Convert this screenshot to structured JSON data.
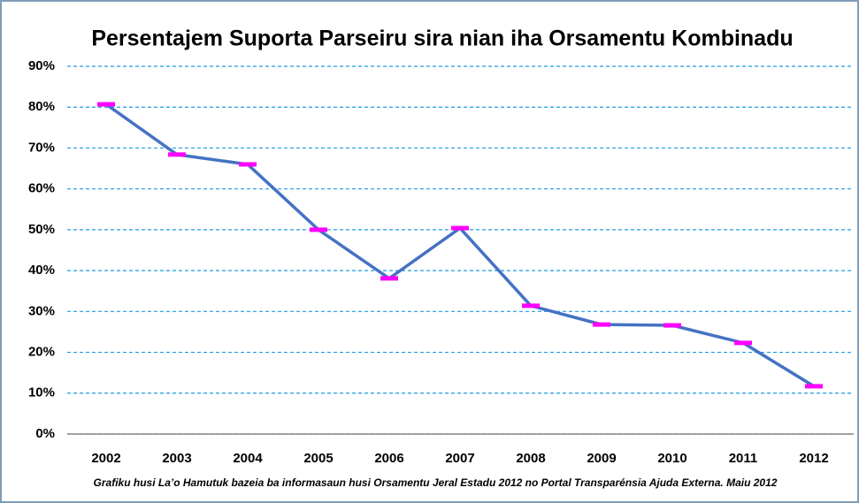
{
  "chart_data": {
    "type": "line",
    "title": "Persentajem Suporta Parseiru sira nian iha Orsamentu Kombinadu",
    "categories": [
      "2002",
      "2003",
      "2004",
      "2005",
      "2006",
      "2007",
      "2008",
      "2009",
      "2010",
      "2011",
      "2012"
    ],
    "series": [
      {
        "name": "Persentajem",
        "color": "#4472c4",
        "marker_color": "#ff00ff",
        "values": [
          80.7,
          68.4,
          66.0,
          50.0,
          38.1,
          50.4,
          31.4,
          26.8,
          26.6,
          22.3,
          11.7
        ]
      }
    ],
    "ylim": [
      0,
      90
    ],
    "yticks": [
      {
        "value": 0,
        "label": "0%"
      },
      {
        "value": 10,
        "label": "10%"
      },
      {
        "value": 20,
        "label": "20%"
      },
      {
        "value": 30,
        "label": "30%"
      },
      {
        "value": 40,
        "label": "40%"
      },
      {
        "value": 50,
        "label": "50%"
      },
      {
        "value": 60,
        "label": "60%"
      },
      {
        "value": 70,
        "label": "70%"
      },
      {
        "value": 80,
        "label": "80%"
      },
      {
        "value": 90,
        "label": "90%"
      }
    ],
    "grid": true,
    "note": "Grafiku husi La’o Hamutuk bazeia ba informasaun husi Orsamentu Jeral Estadu 2012 no Portal Transparénsia Ajuda Externa. Maiu 2012"
  }
}
